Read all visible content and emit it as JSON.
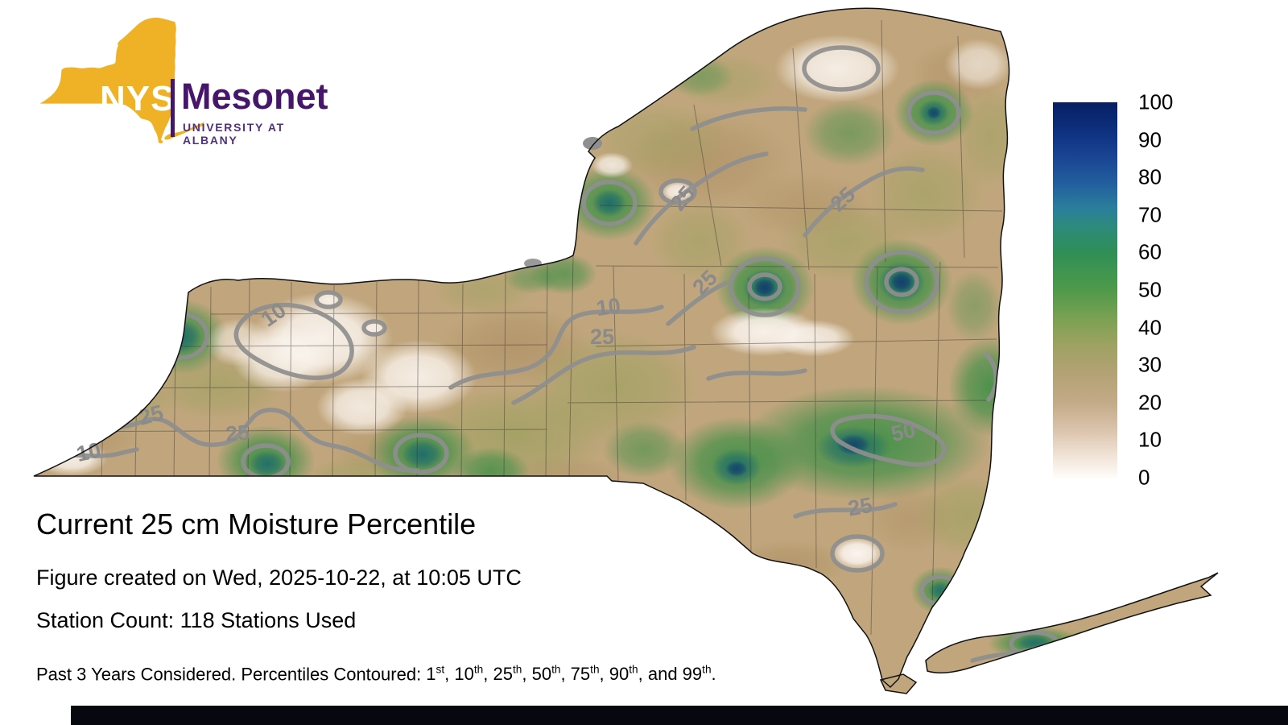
{
  "logo": {
    "nys": "NYS",
    "mesonet": "Mesonet",
    "university": "UNIVERSITY AT ALBANY",
    "gold": "#EFB226",
    "purple": "#46166B"
  },
  "title": "Current 25 cm Moisture Percentile",
  "created_line": "Figure created on Wed, 2025-10-22, at 10:05 UTC",
  "station_line": "Station Count: 118 Stations Used",
  "footer": {
    "lead": "Past 3 Years Considered. Percentiles Contoured: ",
    "separator": ", ",
    "last_separator": ", and ",
    "terminator": ".",
    "percentiles": [
      {
        "value": "1",
        "suffix": "st"
      },
      {
        "value": "10",
        "suffix": "th"
      },
      {
        "value": "25",
        "suffix": "th"
      },
      {
        "value": "50",
        "suffix": "th"
      },
      {
        "value": "75",
        "suffix": "th"
      },
      {
        "value": "90",
        "suffix": "th"
      },
      {
        "value": "99",
        "suffix": "th"
      }
    ]
  },
  "colorbar": {
    "ticks": [
      "100",
      "90",
      "80",
      "70",
      "60",
      "50",
      "40",
      "30",
      "20",
      "10",
      "0"
    ],
    "min": 0,
    "max": 100,
    "top_color": "#071f63",
    "mid_color": "#4f9a4a",
    "bottom_color": "#fefcfa"
  },
  "map": {
    "region": "New York State",
    "contour_labels": [
      "10",
      "25",
      "10",
      "25",
      "25",
      "25",
      "10",
      "25",
      "25",
      "50",
      "25"
    ],
    "contour_line_color": "#8f8f8f",
    "base_color": "#c1a67d"
  },
  "chart_data": {
    "type": "heatmap",
    "title": "Current 25 cm Moisture Percentile",
    "colorbar_ticks": [
      100,
      90,
      80,
      70,
      60,
      50,
      40,
      30,
      20,
      10,
      0
    ],
    "value_range": [
      0,
      100
    ],
    "contoured_percentiles": [
      1,
      10,
      25,
      50,
      75,
      90,
      99
    ],
    "station_count": 118,
    "created": "Wed, 2025-10-22, at 10:05 UTC",
    "years_considered": 3
  }
}
